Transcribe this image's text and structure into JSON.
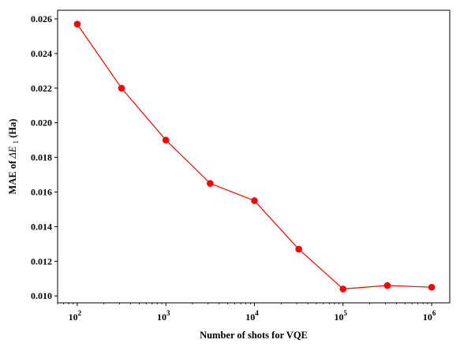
{
  "chart_data": {
    "type": "line",
    "x_scale": "log",
    "xlabel": "Number of shots for VQE",
    "ylabel_prefix": "MAE of ",
    "ylabel_math": "ΔE",
    "ylabel_sub": "1",
    "ylabel_suffix": " (Ha)",
    "xlim": [
      60,
      1600000
    ],
    "ylim": [
      0.0096,
      0.0265
    ],
    "x_ticks": [
      {
        "value": 100,
        "base": "10",
        "exp": "2"
      },
      {
        "value": 1000,
        "base": "10",
        "exp": "3"
      },
      {
        "value": 10000,
        "base": "10",
        "exp": "4"
      },
      {
        "value": 100000,
        "base": "10",
        "exp": "5"
      },
      {
        "value": 1000000,
        "base": "10",
        "exp": "6"
      }
    ],
    "y_ticks": [
      {
        "value": 0.01,
        "label": "0.010"
      },
      {
        "value": 0.012,
        "label": "0.012"
      },
      {
        "value": 0.014,
        "label": "0.014"
      },
      {
        "value": 0.016,
        "label": "0.016"
      },
      {
        "value": 0.018,
        "label": "0.018"
      },
      {
        "value": 0.02,
        "label": "0.020"
      },
      {
        "value": 0.022,
        "label": "0.022"
      },
      {
        "value": 0.024,
        "label": "0.024"
      },
      {
        "value": 0.026,
        "label": "0.026"
      }
    ],
    "series": [
      {
        "color": "#ff0000",
        "marker": "circle",
        "x": [
          100,
          316,
          1000,
          3162,
          10000,
          31623,
          100000,
          316228,
          1000000
        ],
        "y": [
          0.0257,
          0.022,
          0.019,
          0.0165,
          0.0155,
          0.0127,
          0.0104,
          0.0106,
          0.0105
        ]
      }
    ],
    "grid": false,
    "legend": "none"
  }
}
